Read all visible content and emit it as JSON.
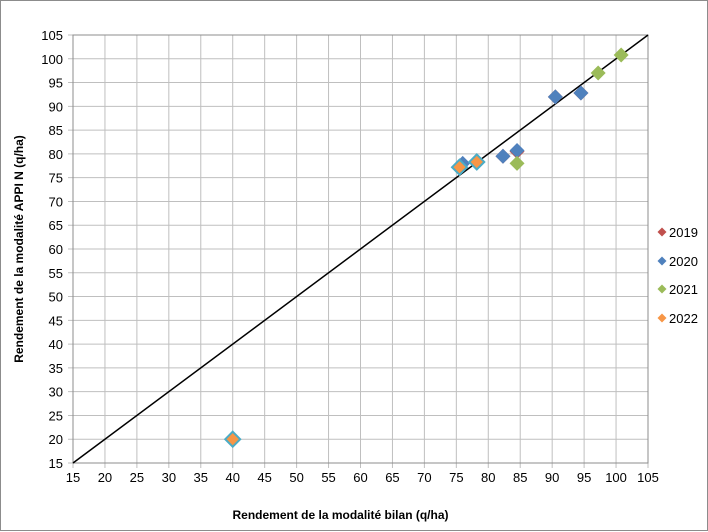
{
  "chart_data": {
    "type": "scatter",
    "xlabel": "Rendement de la modalité bilan (q/ha)",
    "ylabel": "Rendement de la modalité APPI N (q/ha)",
    "xlim": [
      15,
      105
    ],
    "ylim": [
      15,
      105
    ],
    "x_ticks": [
      "15",
      "20",
      "25",
      "30",
      "35",
      "40",
      "45",
      "50",
      "55",
      "60",
      "65",
      "70",
      "75",
      "80",
      "85",
      "90",
      "95",
      "100",
      "105"
    ],
    "y_ticks": [
      "15",
      "20",
      "25",
      "30",
      "35",
      "40",
      "45",
      "50",
      "55",
      "60",
      "65",
      "70",
      "75",
      "80",
      "85",
      "90",
      "95",
      "100",
      "105"
    ],
    "grid": true,
    "legend_position": "right",
    "reference_line": {
      "x": [
        15,
        105
      ],
      "y": [
        15,
        105
      ],
      "color": "#000000"
    },
    "series": [
      {
        "name": "2019",
        "color": "#C0504D",
        "x": [
          82.3,
          84.5,
          90.5,
          94.5
        ],
        "y": [
          79.5,
          80.5,
          92.0,
          92.8
        ]
      },
      {
        "name": "2020",
        "color": "#4F81BD",
        "x": [
          76.0,
          82.3,
          84.5,
          90.5,
          94.5
        ],
        "y": [
          78.0,
          79.5,
          80.7,
          92.0,
          92.8
        ]
      },
      {
        "name": "2021",
        "color": "#9BBB59",
        "x": [
          84.5,
          97.2,
          100.8
        ],
        "y": [
          78.0,
          97.0,
          100.8
        ]
      },
      {
        "name": "2022",
        "color": "#F79646",
        "edge_color": "#4BACC6",
        "x": [
          75.5,
          78.2,
          40.0
        ],
        "y": [
          77.2,
          78.3,
          20.0
        ]
      }
    ]
  }
}
